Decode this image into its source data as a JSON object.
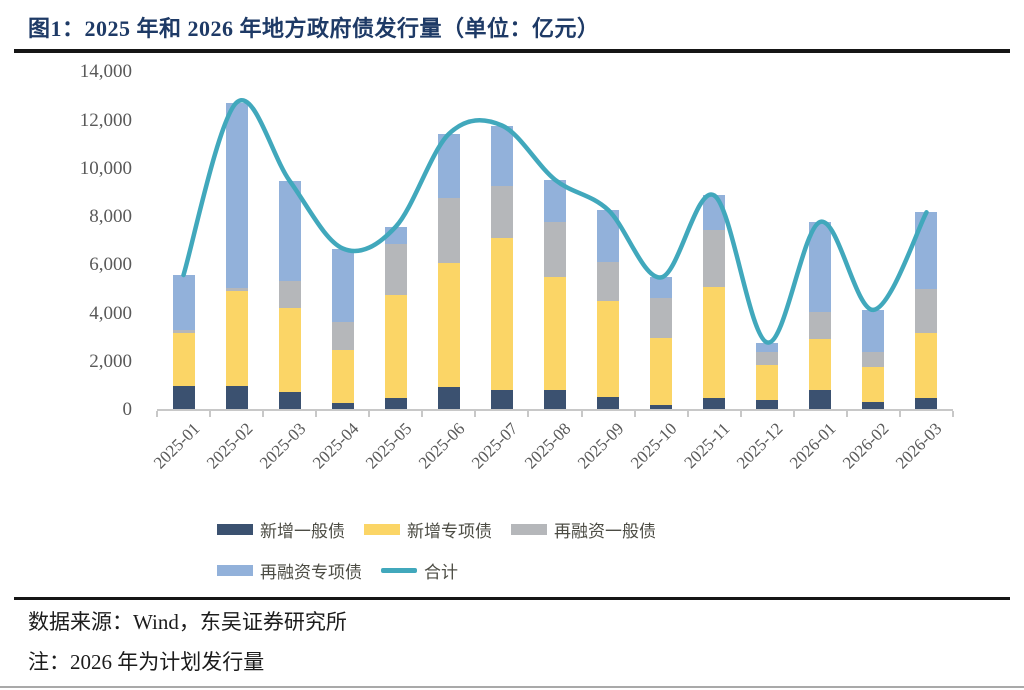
{
  "header": {
    "title": "图1：2025 年和 2026 年地方政府债发行量（单位：亿元）"
  },
  "chart_data": {
    "type": "bar",
    "subtype": "stacked-bars-with-total-line",
    "title": "图1：2025 年和 2026 年地方政府债发行量（单位：亿元）",
    "unit": "亿元",
    "stacked": true,
    "grid": false,
    "legend_position": "bottom",
    "ylim": [
      0,
      14000
    ],
    "yticks": [
      0,
      2000,
      4000,
      6000,
      8000,
      10000,
      12000,
      14000
    ],
    "categories": [
      "2025-01",
      "2025-02",
      "2025-03",
      "2025-04",
      "2025-05",
      "2025-06",
      "2025-07",
      "2025-08",
      "2025-09",
      "2025-10",
      "2025-11",
      "2025-12",
      "2026-01",
      "2026-02",
      "2026-03"
    ],
    "series": [
      {
        "key": "new-general",
        "name": "新增一般债",
        "kind": "bar",
        "color": "#3B5170",
        "values": [
          1000,
          1000,
          750,
          300,
          500,
          950,
          850,
          850,
          550,
          200,
          500,
          400,
          850,
          350,
          500
        ]
      },
      {
        "key": "new-special",
        "name": "新增专项债",
        "kind": "bar",
        "color": "#FBD566",
        "values": [
          2200,
          3950,
          3500,
          2200,
          4250,
          5150,
          6300,
          4650,
          3950,
          2800,
          4600,
          1450,
          2100,
          1450,
          2700
        ]
      },
      {
        "key": "refi-general",
        "name": "再融资一般债",
        "kind": "bar",
        "color": "#B5B7BA",
        "values": [
          100,
          100,
          1100,
          1150,
          2150,
          2700,
          2150,
          2300,
          1650,
          1650,
          2350,
          550,
          1100,
          600,
          1800
        ]
      },
      {
        "key": "refi-special",
        "name": "再融资专项债",
        "kind": "bar",
        "color": "#92B1DA",
        "values": [
          2300,
          7700,
          4150,
          3050,
          700,
          2650,
          2500,
          1750,
          2150,
          850,
          1450,
          400,
          3750,
          1750,
          3200
        ]
      },
      {
        "key": "total",
        "name": "合计",
        "kind": "line",
        "color": "#41A8BC",
        "values": [
          5600,
          12750,
          9500,
          6700,
          7600,
          11450,
          11800,
          9550,
          8300,
          5500,
          8900,
          2800,
          7800,
          4150,
          8200
        ]
      }
    ],
    "legend_rows": [
      [
        0,
        1,
        2
      ],
      [
        3,
        4
      ]
    ]
  },
  "footer": {
    "source": "数据来源：Wind，东吴证券研究所",
    "note": "注：2026 年为计划发行量"
  }
}
